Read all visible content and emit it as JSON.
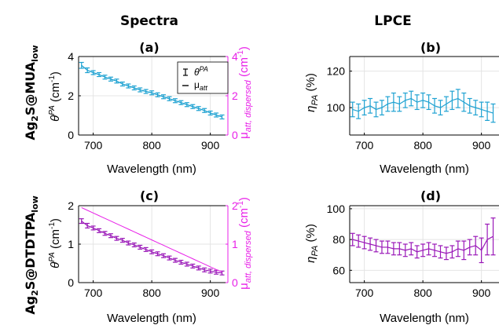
{
  "headers": {
    "spectra": "Spectra",
    "lpce": "LPCE"
  },
  "rows": [
    {
      "label_main": "Ag",
      "label_sub1": "2",
      "label_mid": "S@MUA",
      "label_sub2": "low"
    },
    {
      "label_main": "Ag",
      "label_sub1": "2",
      "label_mid": "S@DTDTPA",
      "label_sub2": "low"
    }
  ],
  "legend": {
    "item1_main": "θ",
    "item1_sup": "PA",
    "item2_main": "μ",
    "item2_sub": "att"
  },
  "axis_labels": {
    "xlabel": "Wavelength (nm)",
    "theta_main": "θ",
    "theta_sup": "PA",
    "theta_unit": "(cm",
    "theta_exp": "-1",
    "theta_close": ")",
    "mu_main": "μ",
    "mu_sub": "att, dispersed",
    "mu_unit": "(cm",
    "mu_exp": "-1",
    "mu_close": ")",
    "eta_main": "η",
    "eta_sub": "PA",
    "eta_unit": "(%)"
  },
  "colors": {
    "cyan": "#1fa2d2",
    "magenta": "#e820e8",
    "purple": "#9a18b8",
    "axis": "#000000",
    "grid": "#e4e4e4"
  },
  "chart_data": [
    {
      "panel": "(a)",
      "type": "line",
      "xlim": [
        675,
        930
      ],
      "ylim": [
        0,
        4
      ],
      "ylim_right": [
        0,
        4
      ],
      "xticks": [
        700,
        800,
        900
      ],
      "yticks": [
        0,
        2,
        4
      ],
      "yticks_right": [
        0,
        2,
        4
      ],
      "grid": true,
      "legend_position": "top-right",
      "x": [
        680,
        690,
        700,
        710,
        720,
        730,
        740,
        750,
        760,
        770,
        780,
        790,
        800,
        810,
        820,
        830,
        840,
        850,
        860,
        870,
        880,
        890,
        900,
        910,
        920
      ],
      "series": [
        {
          "name": "θ^PA",
          "color": "#1fa2d2",
          "errorbars": true,
          "values": [
            3.55,
            3.3,
            3.18,
            3.08,
            2.95,
            2.85,
            2.75,
            2.6,
            2.5,
            2.4,
            2.3,
            2.22,
            2.15,
            2.05,
            1.95,
            1.85,
            1.75,
            1.65,
            1.55,
            1.45,
            1.35,
            1.25,
            1.12,
            1.02,
            0.92
          ],
          "errors": [
            0.15,
            0.12,
            0.1,
            0.1,
            0.1,
            0.1,
            0.1,
            0.1,
            0.1,
            0.1,
            0.1,
            0.1,
            0.1,
            0.1,
            0.1,
            0.1,
            0.1,
            0.1,
            0.1,
            0.1,
            0.1,
            0.1,
            0.1,
            0.1,
            0.1
          ]
        },
        {
          "name": "μ_att",
          "color": "#1fa2d2",
          "errorbars": false,
          "values": [
            3.55,
            3.3,
            3.18,
            3.08,
            2.95,
            2.85,
            2.75,
            2.6,
            2.5,
            2.4,
            2.3,
            2.22,
            2.15,
            2.05,
            1.95,
            1.85,
            1.75,
            1.65,
            1.55,
            1.45,
            1.35,
            1.25,
            1.12,
            1.02,
            0.92
          ]
        }
      ]
    },
    {
      "panel": "(b)",
      "type": "line",
      "xlim": [
        675,
        930
      ],
      "ylim": [
        85,
        128
      ],
      "xticks": [
        700,
        800,
        900
      ],
      "yticks": [
        100,
        120
      ],
      "grid": true,
      "x": [
        680,
        690,
        700,
        710,
        720,
        730,
        740,
        750,
        760,
        770,
        780,
        790,
        800,
        810,
        820,
        830,
        840,
        850,
        860,
        870,
        880,
        890,
        900,
        910,
        920
      ],
      "series": [
        {
          "color": "#1fa2d2",
          "errorbars": true,
          "values": [
            99,
            98,
            100,
            101,
            99,
            100,
            102,
            103,
            102,
            104,
            105,
            103,
            104,
            103,
            101,
            100,
            102,
            104,
            105,
            103,
            101,
            100,
            99,
            98,
            97
          ],
          "errors": [
            4,
            4,
            4,
            4,
            4,
            4,
            4,
            5,
            4,
            4,
            4,
            4,
            4,
            4,
            4,
            4,
            4,
            5,
            5,
            5,
            4,
            4,
            4,
            5,
            5
          ]
        }
      ]
    },
    {
      "panel": "(c)",
      "type": "line",
      "xlim": [
        675,
        930
      ],
      "ylim": [
        0,
        2
      ],
      "ylim_right": [
        0,
        2
      ],
      "xticks": [
        700,
        800,
        900
      ],
      "yticks": [
        0,
        1,
        2
      ],
      "yticks_right": [
        0,
        1,
        2
      ],
      "grid": true,
      "x": [
        680,
        690,
        700,
        710,
        720,
        730,
        740,
        750,
        760,
        770,
        780,
        790,
        800,
        810,
        820,
        830,
        840,
        850,
        860,
        870,
        880,
        890,
        900,
        910,
        920
      ],
      "series": [
        {
          "name": "θ^PA",
          "color": "#9a18b8",
          "errorbars": true,
          "values": [
            1.6,
            1.48,
            1.42,
            1.35,
            1.28,
            1.22,
            1.15,
            1.1,
            1.03,
            0.98,
            0.92,
            0.86,
            0.8,
            0.75,
            0.7,
            0.64,
            0.58,
            0.53,
            0.48,
            0.43,
            0.38,
            0.33,
            0.3,
            0.27,
            0.25
          ],
          "errors": [
            0.06,
            0.06,
            0.05,
            0.05,
            0.05,
            0.05,
            0.05,
            0.05,
            0.05,
            0.05,
            0.05,
            0.05,
            0.05,
            0.05,
            0.05,
            0.05,
            0.05,
            0.05,
            0.05,
            0.05,
            0.05,
            0.05,
            0.05,
            0.05,
            0.05
          ]
        },
        {
          "name": "μ_att",
          "color": "#e820e8",
          "errorbars": false,
          "values": [
            1.95,
            1.88,
            1.81,
            1.74,
            1.67,
            1.6,
            1.53,
            1.46,
            1.39,
            1.32,
            1.25,
            1.18,
            1.11,
            1.04,
            0.97,
            0.9,
            0.83,
            0.76,
            0.69,
            0.62,
            0.55,
            0.48,
            0.41,
            0.34,
            0.28
          ]
        }
      ]
    },
    {
      "panel": "(d)",
      "type": "line",
      "xlim": [
        675,
        930
      ],
      "ylim": [
        52,
        102
      ],
      "xticks": [
        700,
        800,
        900
      ],
      "yticks": [
        60,
        80,
        100
      ],
      "grid": true,
      "x": [
        680,
        690,
        700,
        710,
        720,
        730,
        740,
        750,
        760,
        770,
        780,
        790,
        800,
        810,
        820,
        830,
        840,
        850,
        860,
        870,
        880,
        890,
        900,
        910,
        920
      ],
      "series": [
        {
          "color": "#9a18b8",
          "errorbars": true,
          "values": [
            80,
            79,
            78,
            77,
            76,
            75,
            75,
            74,
            74,
            73,
            74,
            72,
            73,
            74,
            73,
            72,
            71,
            72,
            74,
            73,
            75,
            76,
            73,
            80,
            82
          ],
          "errors": [
            4,
            4,
            4,
            4,
            4,
            4,
            4,
            4,
            4,
            4,
            4,
            4,
            4,
            4,
            4,
            4,
            4,
            4,
            5,
            6,
            5,
            6,
            8,
            10,
            12
          ]
        }
      ]
    }
  ]
}
